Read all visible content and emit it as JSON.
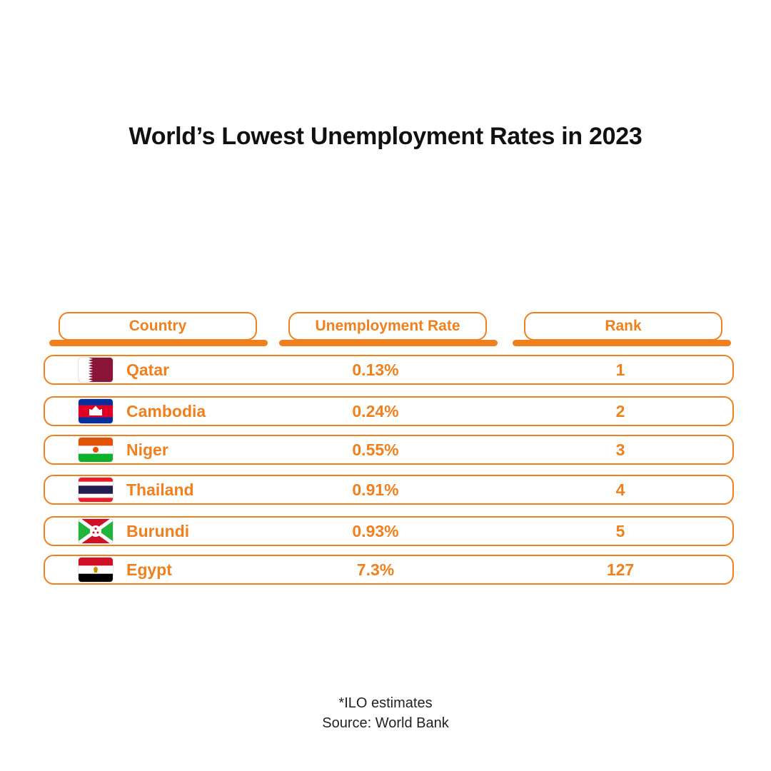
{
  "chart_data": {
    "type": "table",
    "title": "World’s Lowest Unemployment Rates in 2023",
    "columns": [
      "Country",
      "Unemployment Rate",
      "Rank"
    ],
    "rows": [
      {
        "country": "Qatar",
        "flag": "qatar-flag",
        "rate": "0.13%",
        "rank": "1"
      },
      {
        "country": "Cambodia",
        "flag": "cambodia-flag",
        "rate": "0.24%",
        "rank": "2"
      },
      {
        "country": "Niger",
        "flag": "niger-flag",
        "rate": "0.55%",
        "rank": "3"
      },
      {
        "country": "Thailand",
        "flag": "thailand-flag",
        "rate": "0.91%",
        "rank": "4"
      },
      {
        "country": "Burundi",
        "flag": "burundi-flag",
        "rate": "0.93%",
        "rank": "5"
      },
      {
        "country": "Egypt",
        "flag": "egypt-flag",
        "rate": "7.3%",
        "rank": "127"
      }
    ]
  },
  "footnote": "*ILO estimates",
  "source": "Source: World Bank",
  "colors": {
    "accent": "#f0801e",
    "title": "#111111"
  }
}
